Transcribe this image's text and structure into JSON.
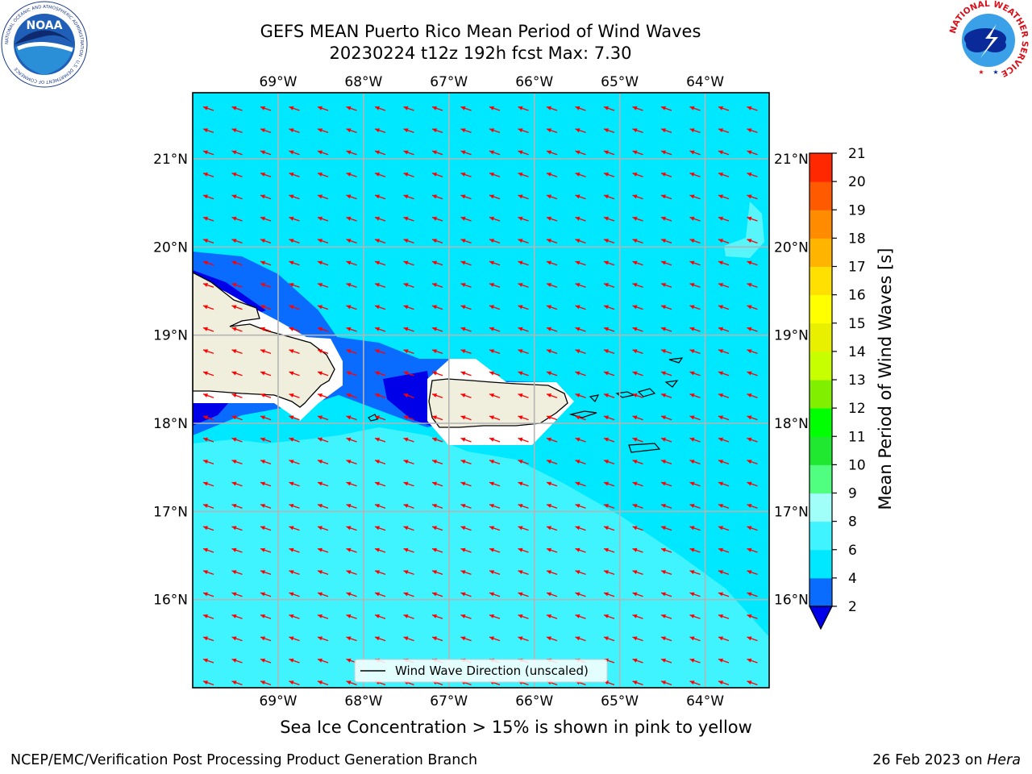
{
  "header": {
    "title_line1": "GEFS MEAN Puerto Rico Mean Period of Wind Waves",
    "title_line2": "20230224 t12z 192h fcst   Max: 7.30",
    "noaa_logo_text": "NOAA",
    "noaa_ring_text": "NATIONAL OCEANIC AND ATMOSPHERIC ADMINISTRATION · U.S. DEPARTMENT OF COMMERCE",
    "nws_ring_text": "NATIONAL WEATHER SERVICE"
  },
  "chart_data": {
    "type": "heatmap",
    "title": "GEFS MEAN Puerto Rico Mean Period of Wind Waves",
    "lon_range": [
      -70.0,
      -63.25
    ],
    "lat_range": [
      15.0,
      21.75
    ],
    "x_ticks": [
      "69°W",
      "68°W",
      "67°W",
      "66°W",
      "65°W",
      "64°W"
    ],
    "x_tick_values": [
      -69,
      -68,
      -67,
      -66,
      -65,
      -64
    ],
    "y_ticks": [
      "16°N",
      "17°N",
      "18°N",
      "19°N",
      "20°N",
      "21°N"
    ],
    "y_tick_values": [
      16,
      17,
      18,
      19,
      20,
      21
    ],
    "grid": true,
    "colorbar": {
      "label": "Mean Period of Wind Waves [s]",
      "levels": [
        2,
        4,
        6,
        8,
        9,
        10,
        11,
        12,
        13,
        14,
        15,
        16,
        17,
        18,
        19,
        20,
        21
      ],
      "tick_labels": [
        "2",
        "4",
        "6",
        "8",
        "9",
        "10",
        "11",
        "12",
        "13",
        "14",
        "15",
        "16",
        "17",
        "18",
        "19",
        "20",
        "21"
      ],
      "colors": [
        "#0a6cff",
        "#00e8ff",
        "#40f4ff",
        "#a0fff8",
        "#50ff80",
        "#20e830",
        "#00ff00",
        "#80f000",
        "#c8ff00",
        "#e8f000",
        "#ffff00",
        "#ffe000",
        "#ffb400",
        "#ff8c00",
        "#ff5a00",
        "#ff2800",
        "#ff0000"
      ],
      "extend_below_color": "#0000e8"
    },
    "field_summary": [
      {
        "period_range_s": "2-4",
        "region": "north coast of Hispaniola and Mona Passage / north-west Puerto Rico"
      },
      {
        "period_range_s": "4-6",
        "region": "open Atlantic north of the islands and eastern Caribbean"
      },
      {
        "period_range_s": "6-8",
        "region": "Caribbean Sea south of the islands"
      }
    ],
    "vector_field": {
      "name": "Wind Wave Direction (unscaled)",
      "color": "#ff0000",
      "direction": "west-northwest (waves heading toward ~290°)"
    },
    "legend_label": "Wind Wave Direction (unscaled)",
    "legend_placement": "bottom-center",
    "max_value": 7.3
  },
  "subtitle": "Sea Ice Concentration > 15% is shown in pink to yellow",
  "footer": {
    "left": "NCEP/EMC/Verification Post Processing Product Generation Branch",
    "right_prefix": "26 Feb 2023 on ",
    "right_host": "Hera"
  }
}
